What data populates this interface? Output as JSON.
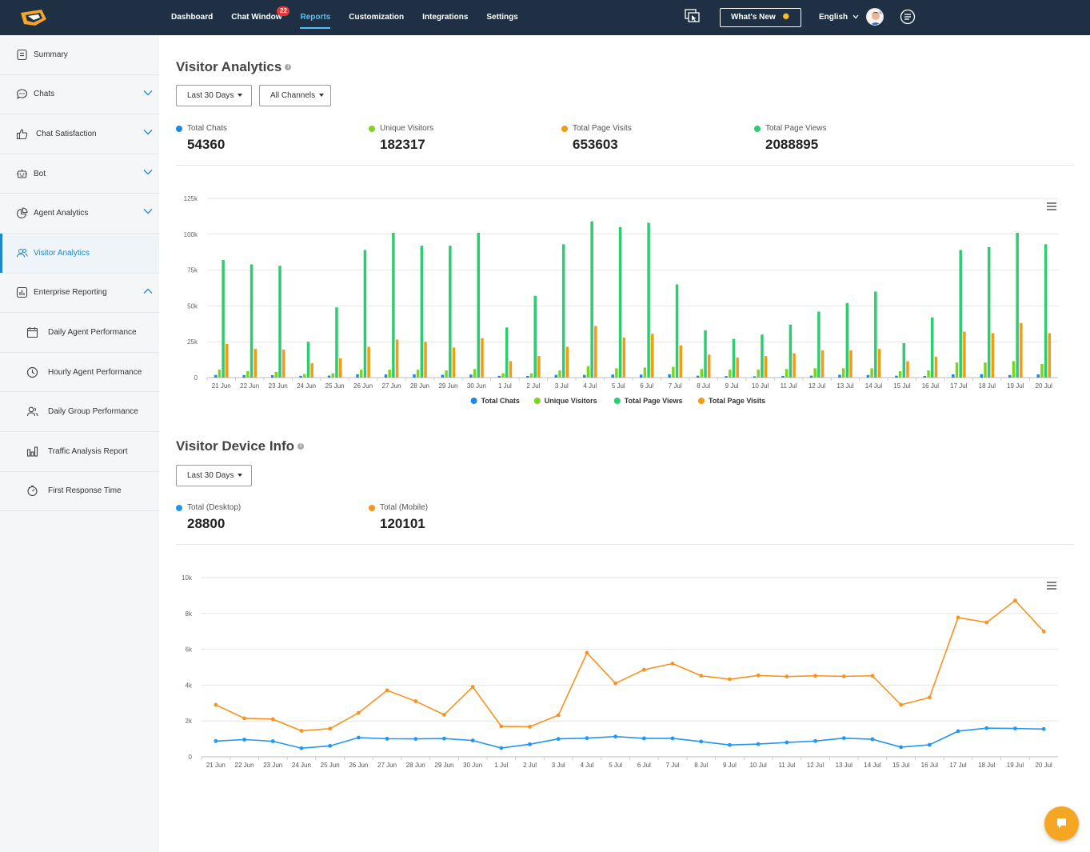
{
  "colors": {
    "topbar": "#1f3044",
    "accent": "#4fc3f7",
    "active": "#1e88c8",
    "total_chats": "#1e88e5",
    "unique_visitors": "#7ed321",
    "page_views": "#2ecc71",
    "page_visits": "#f39c12",
    "desktop": "#2196f3",
    "mobile": "#f7931e"
  },
  "header": {
    "nav": [
      {
        "label": "Dashboard",
        "active": false
      },
      {
        "label": "Chat Window",
        "active": false,
        "badge": "22"
      },
      {
        "label": "Reports",
        "active": true
      },
      {
        "label": "Customization",
        "active": false
      },
      {
        "label": "Integrations",
        "active": false
      },
      {
        "label": "Settings",
        "active": false
      }
    ],
    "whats_new": "What's New",
    "language": "English"
  },
  "sidebar": {
    "items": [
      {
        "label": "Summary",
        "icon": "summary-icon"
      },
      {
        "label": "Chats",
        "icon": "chat-bubble-icon",
        "expandable": "chevron-down"
      },
      {
        "label": "Chat Satisfaction",
        "icon": "thumbs-up-icon",
        "expandable": "chevron-down"
      },
      {
        "label": "Bot",
        "icon": "bot-icon",
        "expandable": "chevron-down"
      },
      {
        "label": "Agent Analytics",
        "icon": "pie-chart-icon",
        "expandable": "chevron-down"
      },
      {
        "label": "Visitor Analytics",
        "icon": "users-icon",
        "active": true
      },
      {
        "label": "Enterprise Reporting",
        "icon": "report-icon",
        "expandable": "chevron-up"
      },
      {
        "label": "Daily Agent Performance",
        "icon": "calendar-icon",
        "sub": true
      },
      {
        "label": "Hourly Agent Performance",
        "icon": "clock-icon",
        "sub": true
      },
      {
        "label": "Daily Group Performance",
        "icon": "group-icon",
        "sub": true
      },
      {
        "label": "Traffic Analysis Report",
        "icon": "bar-chart-icon",
        "sub": true
      },
      {
        "label": "First Response Time",
        "icon": "timer-icon",
        "sub": true
      }
    ]
  },
  "visitor_analytics": {
    "title": "Visitor Analytics",
    "period_filter": "Last 30 Days",
    "channel_filter": "All Channels",
    "stats": [
      {
        "label": "Total Chats",
        "value": "54360",
        "color": "#1e88e5"
      },
      {
        "label": "Unique Visitors",
        "value": "182317",
        "color": "#7ed321"
      },
      {
        "label": "Total Page Visits",
        "value": "653603",
        "color": "#f39c12"
      },
      {
        "label": "Total Page Views",
        "value": "2088895",
        "color": "#2ecc71"
      }
    ]
  },
  "visitor_device": {
    "title": "Visitor Device Info",
    "period_filter": "Last 30 Days",
    "stats": [
      {
        "label": "Total (Desktop)",
        "value": "28800",
        "color": "#2196f3"
      },
      {
        "label": "Total (Mobile)",
        "value": "120101",
        "color": "#f7931e"
      }
    ]
  },
  "chart_data": [
    {
      "type": "bar",
      "categories": [
        "21 Jun",
        "22 Jun",
        "23 Jun",
        "24 Jun",
        "25 Jun",
        "26 Jun",
        "27 Jun",
        "28 Jun",
        "29 Jun",
        "30 Jun",
        "1 Jul",
        "2 Jul",
        "3 Jul",
        "4 Jul",
        "5 Jul",
        "6 Jul",
        "7 Jul",
        "8 Jul",
        "9 Jul",
        "10 Jul",
        "11 Jul",
        "12 Jul",
        "13 Jul",
        "14 Jul",
        "15 Jul",
        "16 Jul",
        "17 Jul",
        "18 Jul",
        "19 Jul",
        "20 Jul"
      ],
      "ylim": [
        0,
        125000
      ],
      "yticks": [
        "0",
        "25k",
        "50k",
        "75k",
        "100k",
        "125k"
      ],
      "legend_position": "bottom-center",
      "grid": true,
      "series": [
        {
          "name": "Total Chats",
          "color": "#1e88e5",
          "values": [
            1900,
            1800,
            1700,
            1200,
            1400,
            2300,
            2200,
            2300,
            2000,
            2100,
            1200,
            1100,
            1900,
            1900,
            2100,
            2100,
            2300,
            1300,
            1000,
            900,
            1100,
            1300,
            2000,
            1800,
            1300,
            1100,
            2300,
            2400,
            1800,
            2200
          ]
        },
        {
          "name": "Unique Visitors",
          "color": "#7ed321",
          "values": [
            5500,
            4500,
            4000,
            2500,
            3000,
            5500,
            5500,
            5500,
            5000,
            6000,
            3000,
            3000,
            5000,
            8000,
            6500,
            7000,
            7500,
            6000,
            5500,
            5500,
            6000,
            6500,
            6500,
            6500,
            4500,
            5000,
            10500,
            10500,
            11500,
            9500
          ]
        },
        {
          "name": "Total Page Views",
          "color": "#2ecc71",
          "values": [
            82000,
            79000,
            78000,
            25000,
            49000,
            89000,
            101000,
            92000,
            92000,
            101000,
            35000,
            57000,
            93000,
            109000,
            105000,
            108000,
            65000,
            33000,
            27000,
            30000,
            37000,
            46000,
            52000,
            60000,
            24000,
            42000,
            89000,
            91000,
            101000,
            93000
          ]
        },
        {
          "name": "Total Page Visits",
          "color": "#f39c12",
          "values": [
            23500,
            20000,
            19500,
            10000,
            13500,
            21500,
            26500,
            25000,
            21000,
            27500,
            11500,
            15000,
            21500,
            36000,
            28000,
            30500,
            22500,
            16000,
            14000,
            15000,
            17000,
            19000,
            19000,
            20000,
            11500,
            14500,
            32000,
            31000,
            38000,
            31000
          ]
        }
      ]
    },
    {
      "type": "line",
      "categories": [
        "21 Jun",
        "22 Jun",
        "23 Jun",
        "24 Jun",
        "25 Jun",
        "26 Jun",
        "27 Jun",
        "28 Jun",
        "29 Jun",
        "30 Jun",
        "1 Jul",
        "2 Jul",
        "3 Jul",
        "4 Jul",
        "5 Jul",
        "6 Jul",
        "7 Jul",
        "8 Jul",
        "9 Jul",
        "10 Jul",
        "11 Jul",
        "12 Jul",
        "13 Jul",
        "14 Jul",
        "15 Jul",
        "16 Jul",
        "17 Jul",
        "18 Jul",
        "19 Jul",
        "20 Jul"
      ],
      "ylim": [
        0,
        10000
      ],
      "yticks": [
        "0",
        "2k",
        "4k",
        "6k",
        "8k",
        "10k"
      ],
      "legend_position": "bottom-center",
      "grid": true,
      "series": [
        {
          "name": "Total (Desktop)",
          "color": "#2196f3",
          "values": [
            880,
            960,
            870,
            480,
            610,
            1070,
            1010,
            1000,
            1020,
            910,
            490,
            700,
            1000,
            1040,
            1130,
            1030,
            1030,
            850,
            660,
            710,
            800,
            880,
            1040,
            980,
            540,
            670,
            1430,
            1600,
            1580,
            1550
          ]
        },
        {
          "name": "Total (Mobile)",
          "color": "#f7931e",
          "values": [
            2900,
            2150,
            2100,
            1450,
            1570,
            2450,
            3710,
            3100,
            2350,
            3900,
            1700,
            1680,
            2320,
            5800,
            4100,
            4860,
            5200,
            4520,
            4330,
            4540,
            4480,
            4520,
            4490,
            4520,
            2900,
            3310,
            7770,
            7500,
            8720,
            7000
          ]
        }
      ]
    }
  ]
}
